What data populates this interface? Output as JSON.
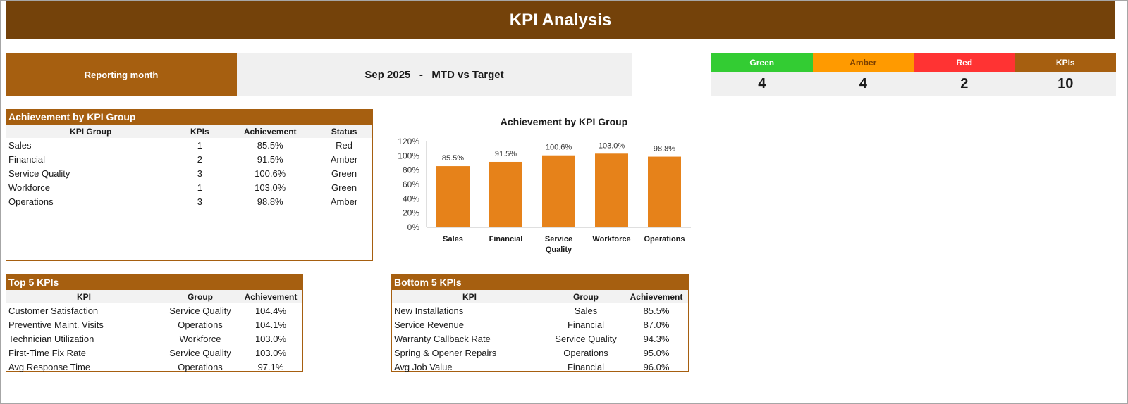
{
  "title": "KPI Analysis",
  "reporting": {
    "label": "Reporting month",
    "value": "Sep 2025   -   MTD vs Target"
  },
  "status_counts": [
    {
      "label": "Green",
      "value": "4",
      "color": "#33cc33"
    },
    {
      "label": "Amber",
      "value": "4",
      "color": "#ff9a00"
    },
    {
      "label": "Red",
      "value": "2",
      "color": "#ff3333"
    },
    {
      "label": "KPIs",
      "value": "10",
      "color": "#a65f10"
    }
  ],
  "group_table": {
    "title": "Achievement by KPI Group",
    "headers": [
      "KPI Group",
      "KPIs",
      "Achievement",
      "Status"
    ],
    "rows": [
      [
        "Sales",
        "1",
        "85.5%",
        "Red"
      ],
      [
        "Financial",
        "2",
        "91.5%",
        "Amber"
      ],
      [
        "Service Quality",
        "3",
        "100.6%",
        "Green"
      ],
      [
        "Workforce",
        "1",
        "103.0%",
        "Green"
      ],
      [
        "Operations",
        "3",
        "98.8%",
        "Amber"
      ]
    ]
  },
  "top5": {
    "title": "Top 5 KPIs",
    "headers": [
      "KPI",
      "Group",
      "Achievement"
    ],
    "rows": [
      [
        "Customer Satisfaction",
        "Service Quality",
        "104.4%"
      ],
      [
        "Preventive Maint. Visits",
        "Operations",
        "104.1%"
      ],
      [
        "Technician Utilization",
        "Workforce",
        "103.0%"
      ],
      [
        "First-Time Fix Rate",
        "Service Quality",
        "103.0%"
      ],
      [
        "Avg Response Time",
        "Operations",
        "97.1%"
      ]
    ]
  },
  "bottom5": {
    "title": "Bottom 5 KPIs",
    "headers": [
      "KPI",
      "Group",
      "Achievement"
    ],
    "rows": [
      [
        "New Installations",
        "Sales",
        "85.5%"
      ],
      [
        "Service Revenue",
        "Financial",
        "87.0%"
      ],
      [
        "Warranty Callback Rate",
        "Service Quality",
        "94.3%"
      ],
      [
        "Spring & Opener Repairs",
        "Operations",
        "95.0%"
      ],
      [
        "Avg Job Value",
        "Financial",
        "96.0%"
      ]
    ]
  },
  "chart_data": {
    "type": "bar",
    "title": "Achievement by KPI Group",
    "categories": [
      "Sales",
      "Financial",
      "Service Quality",
      "Workforce",
      "Operations"
    ],
    "values": [
      85.5,
      91.5,
      100.6,
      103.0,
      98.8
    ],
    "data_labels": [
      "85.5%",
      "91.5%",
      "100.6%",
      "103.0%",
      "98.8%"
    ],
    "ylim": [
      0,
      120
    ],
    "yticks": [
      "0%",
      "20%",
      "40%",
      "60%",
      "80%",
      "100%",
      "120%"
    ],
    "bar_color": "#e6821a",
    "grid": false,
    "legend": "none"
  }
}
